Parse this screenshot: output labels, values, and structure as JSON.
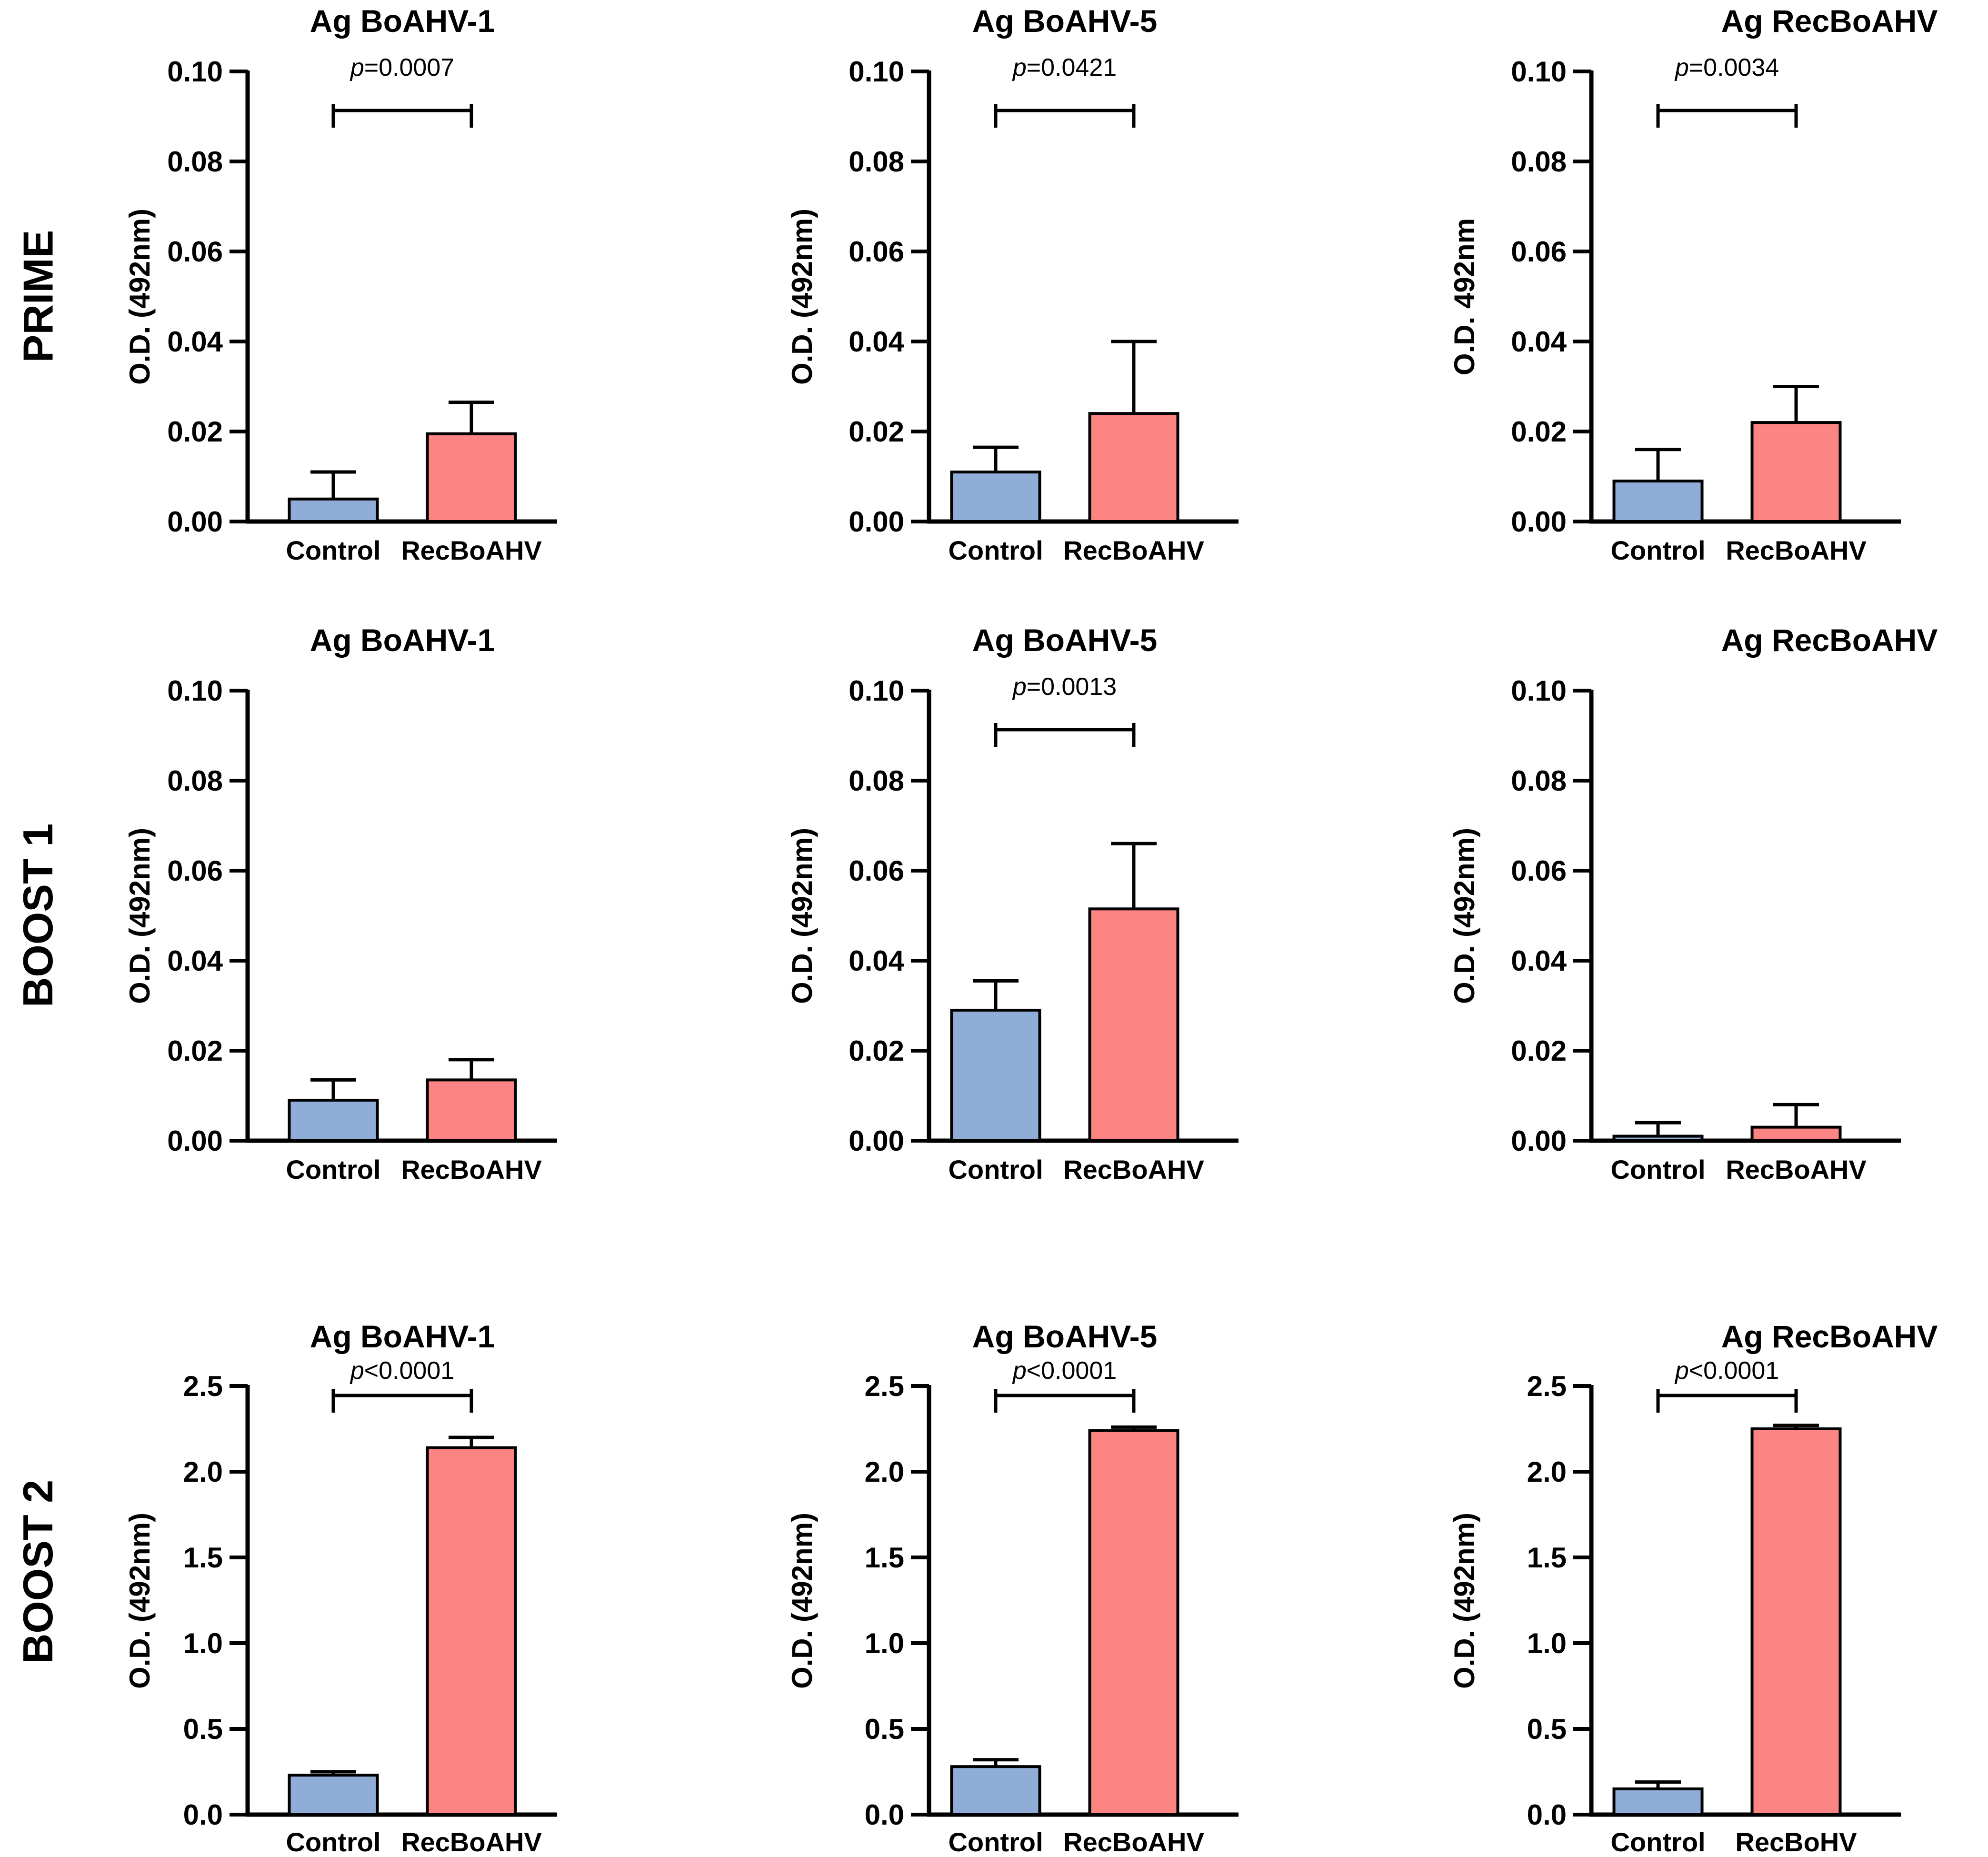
{
  "figure": {
    "description": "3x3 grid of ELISA bar charts comparing Control vs RecBoAHV groups",
    "row_labels": [
      "PRIME",
      "BOOST 1",
      "BOOST 2"
    ]
  },
  "colors": {
    "control_bar": "#8fadd7",
    "recboahv_bar": "#fc8483",
    "axis": "#000000",
    "background": "#ffffff"
  },
  "chart_data": [
    {
      "type": "bar",
      "row": "PRIME",
      "title": "Ag BoAHV-1",
      "ylabel": "O.D. (492nm)",
      "ylim": [
        0,
        0.1
      ],
      "yticks": [
        "0.00",
        "0.02",
        "0.04",
        "0.06",
        "0.08",
        "0.10"
      ],
      "categories": [
        "Control",
        "RecBoAHV"
      ],
      "values": [
        0.005,
        0.0195
      ],
      "error_tops": [
        0.011,
        0.0265
      ],
      "p_label": "p=0.0007",
      "grid": false,
      "legend": false
    },
    {
      "type": "bar",
      "row": "PRIME",
      "title": "Ag BoAHV-5",
      "ylabel": "O.D. (492nm)",
      "ylim": [
        0,
        0.1
      ],
      "yticks": [
        "0.00",
        "0.02",
        "0.04",
        "0.06",
        "0.08",
        "0.10"
      ],
      "categories": [
        "Control",
        "RecBoAHV"
      ],
      "values": [
        0.011,
        0.024
      ],
      "error_tops": [
        0.0165,
        0.04
      ],
      "p_label": "p=0.0421",
      "grid": false,
      "legend": false
    },
    {
      "type": "bar",
      "row": "PRIME",
      "title": "Ag RecBoAHV",
      "ylabel": "O.D. 492nm",
      "ylim": [
        0,
        0.1
      ],
      "yticks": [
        "0.00",
        "0.02",
        "0.04",
        "0.06",
        "0.08",
        "0.10"
      ],
      "categories": [
        "Control",
        "RecBoAHV"
      ],
      "values": [
        0.009,
        0.022
      ],
      "error_tops": [
        0.016,
        0.03
      ],
      "p_label": "p=0.0034",
      "grid": false,
      "legend": false
    },
    {
      "type": "bar",
      "row": "BOOST 1",
      "title": "Ag BoAHV-1",
      "ylabel": "O.D. (492nm)",
      "ylim": [
        0,
        0.1
      ],
      "yticks": [
        "0.00",
        "0.02",
        "0.04",
        "0.06",
        "0.08",
        "0.10"
      ],
      "categories": [
        "Control",
        "RecBoAHV"
      ],
      "values": [
        0.009,
        0.0135
      ],
      "error_tops": [
        0.0135,
        0.018
      ],
      "p_label": null,
      "grid": false,
      "legend": false
    },
    {
      "type": "bar",
      "row": "BOOST 1",
      "title": "Ag BoAHV-5",
      "ylabel": "O.D. (492nm)",
      "ylim": [
        0,
        0.1
      ],
      "yticks": [
        "0.00",
        "0.02",
        "0.04",
        "0.06",
        "0.08",
        "0.10"
      ],
      "categories": [
        "Control",
        "RecBoAHV"
      ],
      "values": [
        0.029,
        0.0515
      ],
      "error_tops": [
        0.0355,
        0.066
      ],
      "p_label": "p=0.0013",
      "grid": false,
      "legend": false
    },
    {
      "type": "bar",
      "row": "BOOST 1",
      "title": "Ag RecBoAHV",
      "ylabel": "O.D. (492nm)",
      "ylim": [
        0,
        0.1
      ],
      "yticks": [
        "0.00",
        "0.02",
        "0.04",
        "0.06",
        "0.08",
        "0.10"
      ],
      "categories": [
        "Control",
        "RecBoAHV"
      ],
      "values": [
        0.001,
        0.003
      ],
      "error_tops": [
        0.004,
        0.008
      ],
      "p_label": null,
      "grid": false,
      "legend": false
    },
    {
      "type": "bar",
      "row": "BOOST 2",
      "title": "Ag BoAHV-1",
      "ylabel": "O.D. (492nm)",
      "ylim": [
        0,
        2.5
      ],
      "yticks": [
        "0.0",
        "0.5",
        "1.0",
        "1.5",
        "2.0",
        "2.5"
      ],
      "categories": [
        "Control",
        "RecBoAHV"
      ],
      "values": [
        0.23,
        2.14
      ],
      "error_tops": [
        0.25,
        2.2
      ],
      "p_label": "p<0.0001",
      "grid": false,
      "legend": false
    },
    {
      "type": "bar",
      "row": "BOOST 2",
      "title": "Ag BoAHV-5",
      "ylabel": "O.D. (492nm)",
      "ylim": [
        0,
        2.5
      ],
      "yticks": [
        "0.0",
        "0.5",
        "1.0",
        "1.5",
        "2.0",
        "2.5"
      ],
      "categories": [
        "Control",
        "RecBoAHV"
      ],
      "values": [
        0.28,
        2.24
      ],
      "error_tops": [
        0.32,
        2.26
      ],
      "p_label": "p<0.0001",
      "grid": false,
      "legend": false
    },
    {
      "type": "bar",
      "row": "BOOST 2",
      "title": "Ag RecBoAHV",
      "ylabel": "O.D. (492nm)",
      "ylim": [
        0,
        2.5
      ],
      "yticks": [
        "0.0",
        "0.5",
        "1.0",
        "1.5",
        "2.0",
        "2.5"
      ],
      "categories": [
        "Control",
        "RecBoHV"
      ],
      "values": [
        0.15,
        2.25
      ],
      "error_tops": [
        0.19,
        2.27
      ],
      "p_label": "p<0.0001",
      "grid": false,
      "legend": false
    }
  ]
}
